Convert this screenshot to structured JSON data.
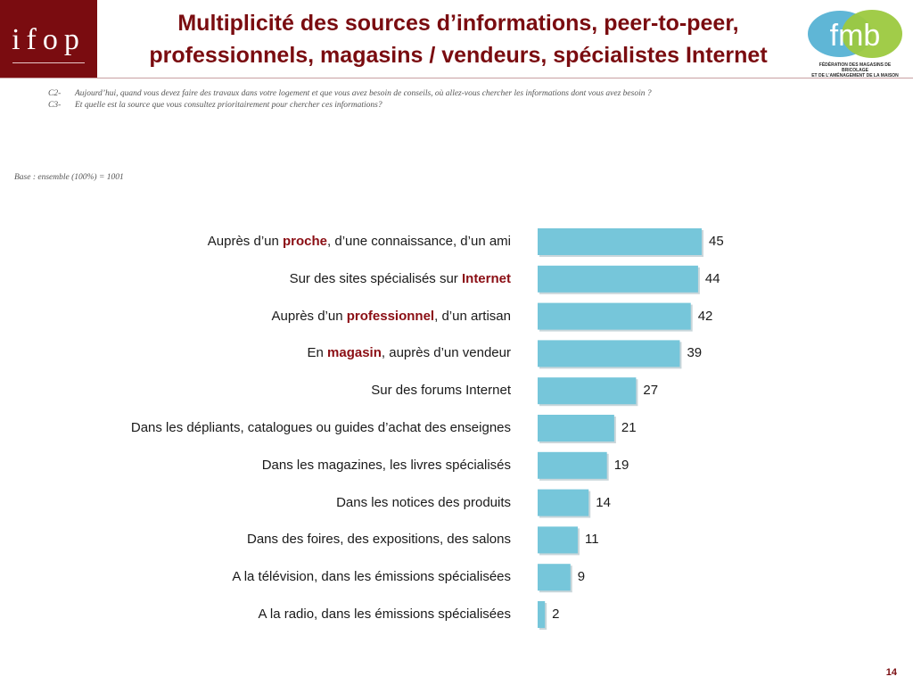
{
  "header": {
    "logo_text": "ifop",
    "title_line1": "Multiplicité des sources d’informations, peer-to-peer,",
    "title_line2": "professionnels, magasins / vendeurs, spécialistes Internet",
    "partner_logo_text": "fmb",
    "partner_caption_line1": "FÉDÉRATION DES MAGASINS DE BRICOLAGE",
    "partner_caption_line2": "ET DE L’AMÉNAGEMENT DE LA MAISON"
  },
  "questions": [
    {
      "code": "C2-",
      "text": "Aujourd’hui, quand vous devez faire des travaux dans votre logement et que vous avez besoin de conseils, où allez-vous chercher les informations dont vous avez besoin ?"
    },
    {
      "code": "C3-",
      "text": "Et quelle est la source que vous consultez prioritairement pour chercher ces informations?"
    }
  ],
  "base": "Base : ensemble (100%) = 1001",
  "page_number": "14",
  "colors": {
    "bar": "#76c6da",
    "keyword": "#8b0e14",
    "brand": "#7a0c10"
  },
  "chart_data": {
    "type": "bar",
    "orientation": "horizontal",
    "categories": [
      [
        {
          "t": "Auprès d’un "
        },
        {
          "t": "proche",
          "kw": true
        },
        {
          "t": ", d’une connaissance, d’un ami"
        }
      ],
      [
        {
          "t": "Sur des sites spécialisés sur "
        },
        {
          "t": "Internet",
          "kw": true
        }
      ],
      [
        {
          "t": "Auprès d’un "
        },
        {
          "t": "professionnel",
          "kw": true
        },
        {
          "t": ", d’un artisan"
        }
      ],
      [
        {
          "t": "En "
        },
        {
          "t": "magasin",
          "kw": true
        },
        {
          "t": ", auprès d’un vendeur"
        }
      ],
      [
        {
          "t": "Sur des forums Internet"
        }
      ],
      [
        {
          "t": "Dans les dépliants, catalogues ou guides d’achat des enseignes"
        }
      ],
      [
        {
          "t": "Dans les magazines, les livres spécialisés"
        }
      ],
      [
        {
          "t": "Dans les notices des produits"
        }
      ],
      [
        {
          "t": "Dans des foires, des expositions, des salons"
        }
      ],
      [
        {
          "t": "A la télévision, dans les émissions spécialisées"
        }
      ],
      [
        {
          "t": "A la radio, dans les émissions spécialisées"
        }
      ]
    ],
    "values": [
      45,
      44,
      42,
      39,
      27,
      21,
      19,
      14,
      11,
      9,
      2
    ],
    "value_labels": [
      "45",
      "44",
      "42",
      "39",
      "27",
      "21",
      "19",
      "14",
      "11",
      "9",
      "2"
    ],
    "xlim": [
      0,
      45
    ],
    "grid": false,
    "legend": "none"
  }
}
